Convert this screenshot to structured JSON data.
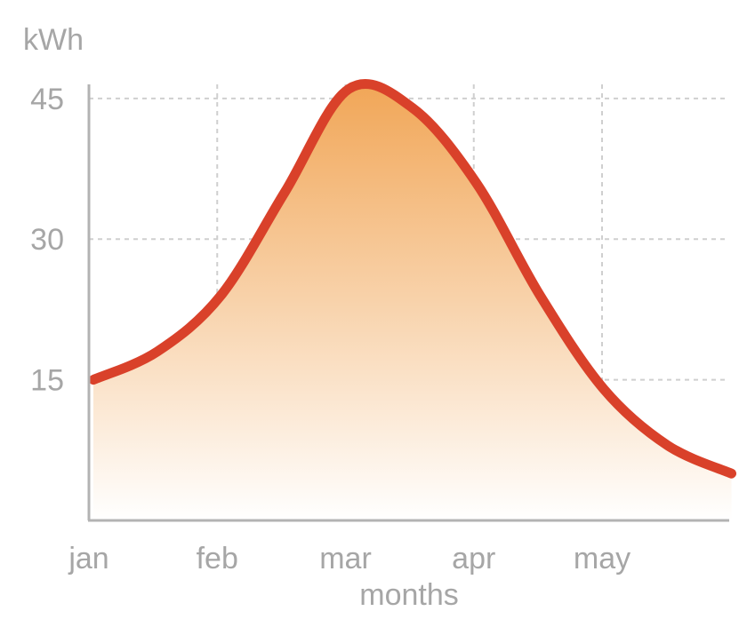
{
  "chart_data": {
    "type": "area",
    "title": "",
    "xlabel": "months",
    "ylabel": "kWh",
    "categories": [
      "jan",
      "feb",
      "mar",
      "apr",
      "may"
    ],
    "x": [
      0,
      0.5,
      1,
      1.5,
      2,
      2.5,
      3,
      3.5,
      4,
      4.5,
      5
    ],
    "series": [
      {
        "values": [
          15,
          18,
          24,
          35,
          46,
          44,
          36,
          24,
          14,
          8,
          5
        ]
      }
    ],
    "yticks": [
      15,
      30,
      45
    ],
    "xlim": [
      0,
      5
    ],
    "ylim": [
      0,
      46.5
    ],
    "grid": true,
    "line_color": "#d9412a",
    "fill_color_top": "#f1a657",
    "fill_color_bottom": "#ffffff"
  }
}
